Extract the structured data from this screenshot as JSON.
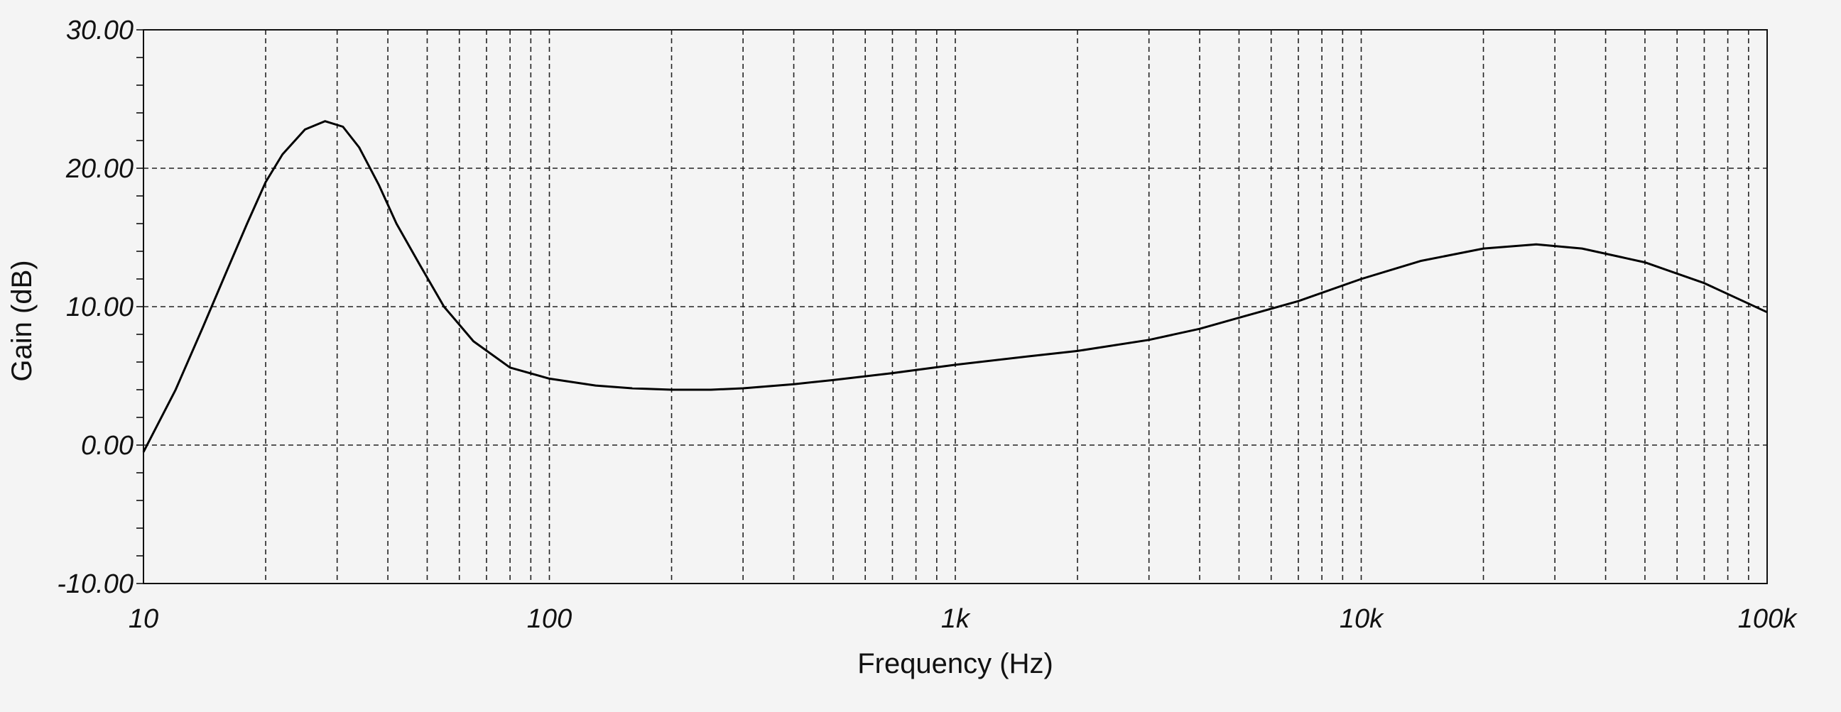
{
  "chart_data": {
    "type": "line",
    "xlabel": "Frequency (Hz)",
    "ylabel": "Gain (dB)",
    "x_scale": "log",
    "xlim": [
      10,
      100000
    ],
    "ylim": [
      -10,
      30
    ],
    "grid": true,
    "x_tick_values": [
      10,
      100,
      1000,
      10000,
      100000
    ],
    "x_tick_labels": [
      "10",
      "100",
      "1k",
      "10k",
      "100k"
    ],
    "y_tick_values": [
      30,
      20,
      10,
      0,
      -10
    ],
    "y_tick_labels": [
      "30.00",
      "20.00",
      "10.00",
      "0.00",
      "-10.00"
    ],
    "series": [
      {
        "x": [
          10,
          12,
          14,
          16,
          18,
          20,
          22,
          25,
          28,
          31,
          34,
          38,
          42,
          48,
          55,
          65,
          80,
          100,
          130,
          160,
          200,
          250,
          300,
          400,
          500,
          700,
          1000,
          1500,
          2000,
          3000,
          4000,
          5000,
          7000,
          10000,
          14000,
          20000,
          27000,
          35000,
          50000,
          70000,
          100000
        ],
        "y": [
          -0.5,
          4.0,
          8.5,
          12.5,
          16.0,
          19.0,
          21.0,
          22.8,
          23.4,
          23.0,
          21.5,
          18.8,
          16.0,
          13.0,
          10.0,
          7.5,
          5.6,
          4.8,
          4.3,
          4.1,
          4.0,
          4.0,
          4.1,
          4.4,
          4.7,
          5.2,
          5.8,
          6.4,
          6.8,
          7.6,
          8.4,
          9.2,
          10.4,
          12.0,
          13.3,
          14.2,
          14.5,
          14.2,
          13.2,
          11.7,
          9.6
        ],
        "color": "#000000"
      }
    ]
  }
}
